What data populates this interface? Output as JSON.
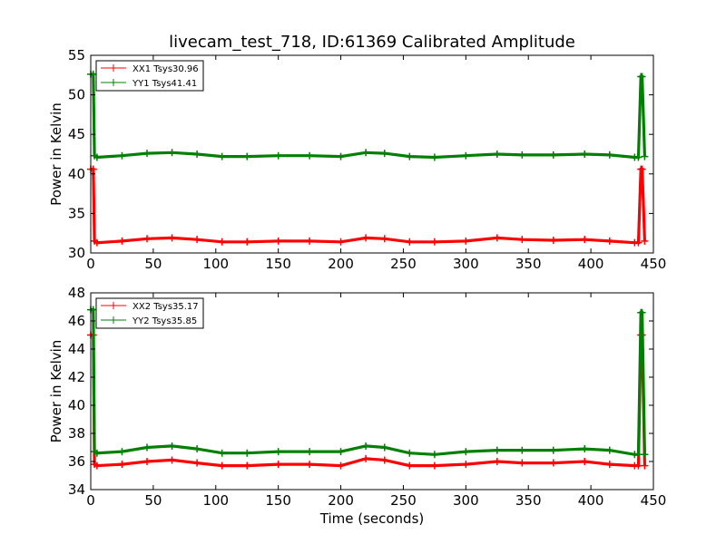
{
  "chart_data": [
    {
      "type": "line",
      "title": "livecam_test_718, ID:61369 Calibrated Amplitude",
      "xlabel": "",
      "ylabel": "Power in Kelvin",
      "xlim": [
        0,
        450
      ],
      "ylim": [
        30,
        55
      ],
      "xticks": [
        0,
        50,
        100,
        150,
        200,
        250,
        300,
        350,
        400,
        450
      ],
      "yticks": [
        30,
        35,
        40,
        45,
        50,
        55
      ],
      "legend": "top-left",
      "series": [
        {
          "name": "XX1 Tsys30.96",
          "color": "#ff0000",
          "x": [
            0,
            2,
            3,
            5,
            25,
            45,
            65,
            85,
            105,
            125,
            150,
            175,
            200,
            220,
            235,
            255,
            275,
            300,
            325,
            345,
            370,
            395,
            415,
            435,
            438,
            440,
            441,
            443
          ],
          "y": [
            40.6,
            40.6,
            31.5,
            31.3,
            31.5,
            31.8,
            31.9,
            31.7,
            31.4,
            31.4,
            31.5,
            31.5,
            31.4,
            31.9,
            31.8,
            31.4,
            31.4,
            31.5,
            31.9,
            31.7,
            31.6,
            31.7,
            31.5,
            31.3,
            31.3,
            40.6,
            40.6,
            31.5
          ]
        },
        {
          "name": "YY1 Tsys41.41",
          "color": "#008000",
          "x": [
            0,
            2,
            3,
            5,
            25,
            45,
            65,
            85,
            105,
            125,
            150,
            175,
            200,
            220,
            235,
            255,
            275,
            300,
            325,
            345,
            370,
            395,
            415,
            435,
            438,
            440,
            441,
            443
          ],
          "y": [
            52.6,
            52.6,
            42.3,
            42.1,
            42.3,
            42.6,
            42.7,
            42.5,
            42.2,
            42.2,
            42.3,
            42.3,
            42.2,
            42.7,
            42.6,
            42.2,
            42.1,
            42.3,
            42.5,
            42.4,
            42.4,
            42.5,
            42.4,
            42.1,
            42.1,
            52.3,
            52.3,
            42.2
          ]
        }
      ]
    },
    {
      "type": "line",
      "title": "",
      "xlabel": "Time (seconds)",
      "ylabel": "Power in Kelvin",
      "xlim": [
        0,
        450
      ],
      "ylim": [
        34,
        48
      ],
      "xticks": [
        0,
        50,
        100,
        150,
        200,
        250,
        300,
        350,
        400,
        450
      ],
      "yticks": [
        34,
        36,
        38,
        40,
        42,
        44,
        46,
        48
      ],
      "legend": "top-left",
      "series": [
        {
          "name": "XX2 Tsys35.17",
          "color": "#ff0000",
          "x": [
            0,
            2,
            3,
            5,
            25,
            45,
            65,
            85,
            105,
            125,
            150,
            175,
            200,
            220,
            235,
            255,
            275,
            300,
            325,
            345,
            370,
            395,
            415,
            435,
            438,
            440,
            441,
            443
          ],
          "y": [
            45.0,
            45.0,
            35.8,
            35.7,
            35.8,
            36.0,
            36.1,
            35.9,
            35.7,
            35.7,
            35.8,
            35.8,
            35.7,
            36.2,
            36.1,
            35.7,
            35.7,
            35.8,
            36.0,
            35.9,
            35.9,
            36.0,
            35.8,
            35.7,
            35.7,
            45.0,
            45.0,
            35.7
          ]
        },
        {
          "name": "YY2 Tsys35.85",
          "color": "#008000",
          "x": [
            0,
            2,
            3,
            5,
            25,
            45,
            65,
            85,
            105,
            125,
            150,
            175,
            200,
            220,
            235,
            255,
            275,
            300,
            325,
            345,
            370,
            395,
            415,
            435,
            438,
            440,
            441,
            443
          ],
          "y": [
            46.8,
            46.8,
            36.7,
            36.6,
            36.7,
            37.0,
            37.1,
            36.9,
            36.6,
            36.6,
            36.7,
            36.7,
            36.7,
            37.1,
            37.0,
            36.6,
            36.5,
            36.7,
            36.8,
            36.8,
            36.8,
            36.9,
            36.8,
            36.5,
            36.5,
            46.6,
            46.6,
            36.5
          ]
        }
      ]
    }
  ]
}
